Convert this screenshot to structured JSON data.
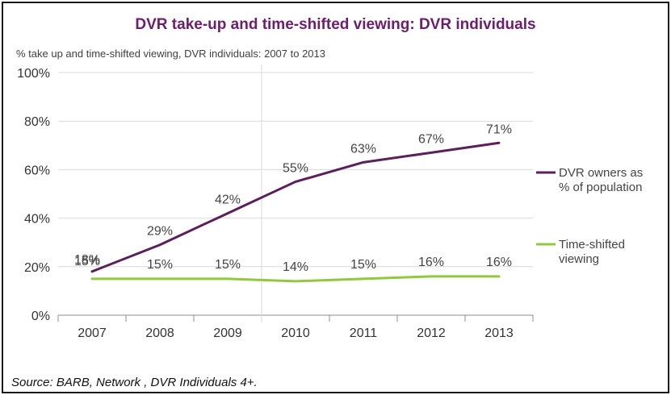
{
  "chart_data": {
    "type": "line",
    "title": "DVR take-up and time-shifted viewing: DVR individuals",
    "subtitle": "% take up and time-shifted viewing, DVR individuals: 2007 to 2013",
    "x": [
      "2007",
      "2008",
      "2009",
      "2010",
      "2011",
      "2012",
      "2013"
    ],
    "y_ticks": [
      "0%",
      "20%",
      "40%",
      "60%",
      "80%",
      "100%"
    ],
    "ylim": [
      0,
      100
    ],
    "grid": "horizontal",
    "legend_position": "right",
    "series": [
      {
        "name": "DVR owners as % of population",
        "name_lines": [
          "DVR owners as",
          "% of population"
        ],
        "color": "#5b1f5b",
        "values": [
          18,
          29,
          42,
          55,
          63,
          67,
          71
        ],
        "labels": [
          "18%",
          "29%",
          "42%",
          "55%",
          "63%",
          "67%",
          "71%"
        ]
      },
      {
        "name": "Time-shifted viewing",
        "name_lines": [
          "Time-shifted",
          "viewing"
        ],
        "color": "#92c83e",
        "values": [
          15,
          15,
          15,
          14,
          15,
          16,
          16
        ],
        "labels": [
          "15%",
          "15%",
          "15%",
          "14%",
          "15%",
          "16%",
          "16%"
        ]
      }
    ],
    "source": "Source: BARB, Network , DVR Individuals 4+."
  }
}
